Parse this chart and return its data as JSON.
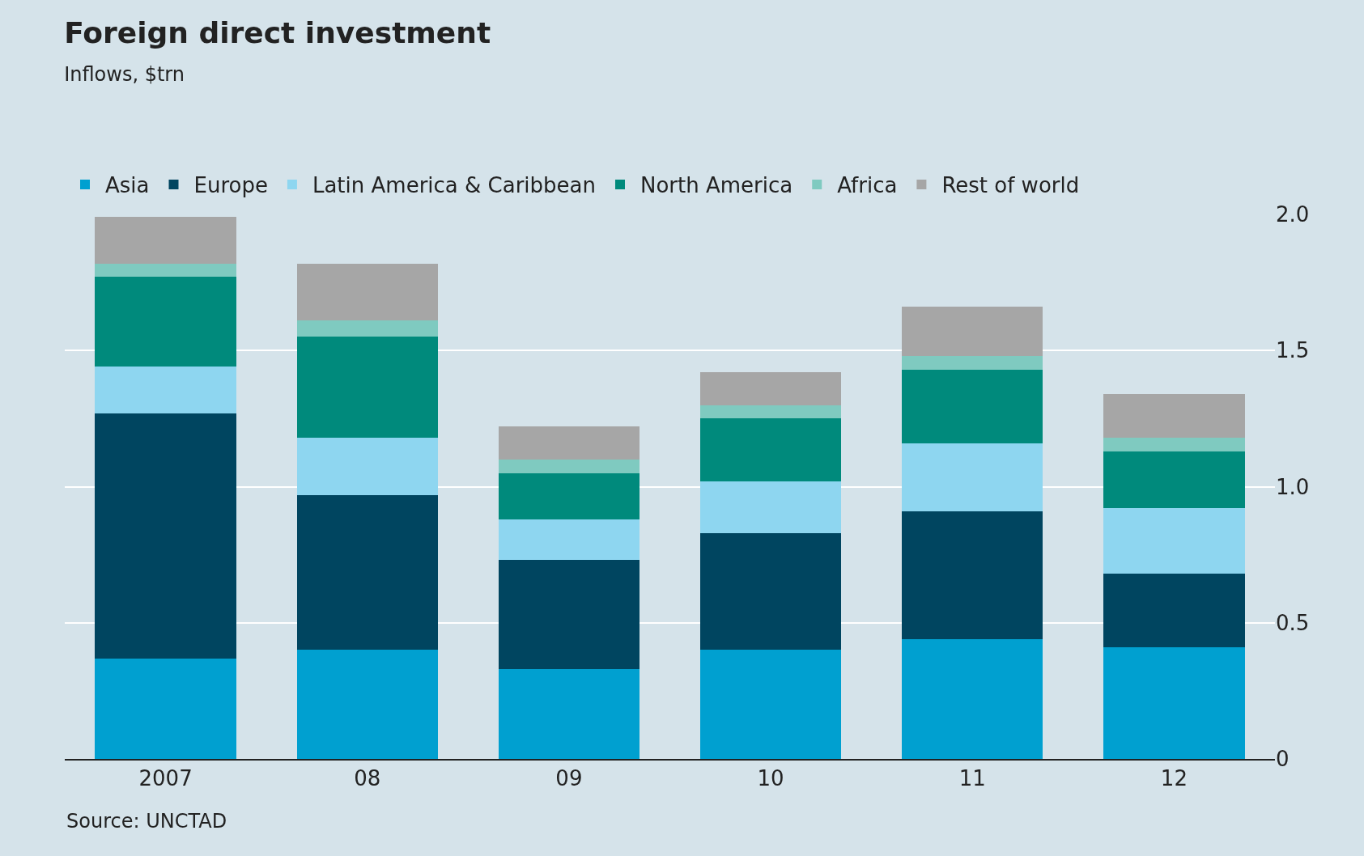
{
  "chart_data": {
    "type": "bar",
    "title": "Foreign direct investment",
    "subtitle": "Inflows, $trn",
    "categories": [
      "2007",
      "08",
      "09",
      "10",
      "11",
      "12"
    ],
    "stacked": true,
    "series": [
      {
        "name": "Asia",
        "color": "#00a0d0",
        "values": [
          0.37,
          0.4,
          0.33,
          0.4,
          0.44,
          0.41
        ]
      },
      {
        "name": "Europe",
        "color": "#004560",
        "values": [
          0.9,
          0.57,
          0.4,
          0.43,
          0.47,
          0.27
        ]
      },
      {
        "name": "Latin America & Caribbean",
        "color": "#8ed6f0",
        "values": [
          0.17,
          0.21,
          0.15,
          0.19,
          0.25,
          0.24
        ]
      },
      {
        "name": "North America",
        "color": "#008a7c",
        "values": [
          0.33,
          0.37,
          0.17,
          0.23,
          0.27,
          0.21
        ]
      },
      {
        "name": "Africa",
        "color": "#7fcac0",
        "values": [
          0.05,
          0.06,
          0.05,
          0.05,
          0.05,
          0.05
        ]
      },
      {
        "name": "Rest of world",
        "color": "#a6a6a6",
        "values": [
          0.17,
          0.21,
          0.12,
          0.12,
          0.18,
          0.16
        ]
      }
    ],
    "ylim": [
      0,
      2.0
    ],
    "yticks": [
      0,
      {
        "value": 0.5,
        "label": "0.5"
      },
      {
        "value": 1.0,
        "label": "1.0"
      },
      {
        "value": 1.5,
        "label": "1.5"
      },
      {
        "value": 2.0,
        "label": "2.0"
      }
    ],
    "grid": "y",
    "legend": "top",
    "annotations": [
      "Source: UNCTAD"
    ]
  }
}
